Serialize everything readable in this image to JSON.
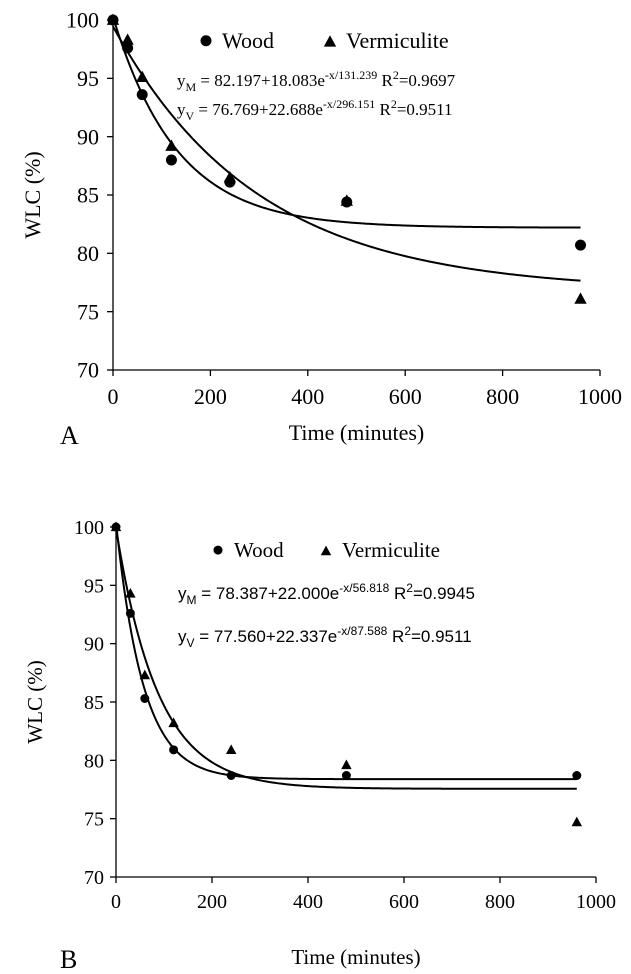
{
  "chart_data": [
    {
      "type": "scatter",
      "panel_label": "A",
      "xlabel": "Time (minutes)",
      "ylabel": "WLC (%)",
      "xlim": [
        0,
        1000
      ],
      "ylim": [
        70,
        100
      ],
      "xticks": [
        "0",
        "200",
        "400",
        "600",
        "800",
        "1000"
      ],
      "yticks": [
        "70",
        "75",
        "80",
        "85",
        "90",
        "95",
        "100"
      ],
      "legend_position": "top",
      "series": [
        {
          "name": "Wood",
          "marker": "circle",
          "x": [
            0,
            30,
            60,
            120,
            240,
            480,
            960
          ],
          "y": [
            100,
            97.6,
            93.6,
            88.0,
            86.1,
            84.4,
            80.7
          ],
          "fit": {
            "a": 82.197,
            "b": 18.083,
            "c": 131.239
          }
        },
        {
          "name": "Vermiculite",
          "marker": "triangle",
          "x": [
            0,
            30,
            60,
            120,
            240,
            480,
            960
          ],
          "y": [
            100,
            98.3,
            95.1,
            89.2,
            86.5,
            84.5,
            76.1
          ],
          "fit": {
            "a": 76.769,
            "b": 22.688,
            "c": 296.151
          }
        }
      ],
      "equations": [
        {
          "pre": "y",
          "sub": "M",
          "mid": " = 82.197+18.083e",
          "sup": "-x/131.239",
          "r_pre": "  R",
          "r_sup": "2",
          "r_post": "=0.9697"
        },
        {
          "pre": "y",
          "sub": "V",
          "mid": " = 76.769+22.688e",
          "sup": "-x/296.151",
          "r_pre": "  R",
          "r_sup": "2",
          "r_post": "=0.9511"
        }
      ]
    },
    {
      "type": "scatter",
      "panel_label": "B",
      "xlabel": "Time (minutes)",
      "ylabel": "WLC (%)",
      "xlim": [
        0,
        1000
      ],
      "ylim": [
        70,
        100
      ],
      "xticks": [
        "0",
        "200",
        "400",
        "600",
        "800",
        "1000"
      ],
      "yticks": [
        "70",
        "75",
        "80",
        "85",
        "90",
        "95",
        "100"
      ],
      "legend_position": "top",
      "series": [
        {
          "name": "Wood",
          "marker": "circle",
          "x": [
            0,
            30,
            60,
            120,
            240,
            480,
            960
          ],
          "y": [
            100,
            92.6,
            85.3,
            80.9,
            78.7,
            78.7,
            78.7
          ],
          "fit": {
            "a": 78.387,
            "b": 22.0,
            "c": 56.818
          }
        },
        {
          "name": "Vermiculite",
          "marker": "triangle",
          "x": [
            0,
            30,
            60,
            120,
            240,
            480,
            960
          ],
          "y": [
            100,
            94.3,
            87.3,
            83.2,
            80.9,
            79.6,
            74.7
          ],
          "fit": {
            "a": 77.56,
            "b": 22.337,
            "c": 87.588
          }
        }
      ],
      "equations": [
        {
          "pre": "y",
          "sub": "M",
          "mid": " = 78.387+22.000e",
          "sup": "-x/56.818",
          "r_pre": "  R",
          "r_sup": "2",
          "r_post": "=0.9945"
        },
        {
          "pre": "y",
          "sub": "V",
          "mid": " = 77.560+22.337e",
          "sup": "-x/87.588",
          "r_pre": "  R",
          "r_sup": "2",
          "r_post": "=0.9511"
        }
      ]
    }
  ]
}
